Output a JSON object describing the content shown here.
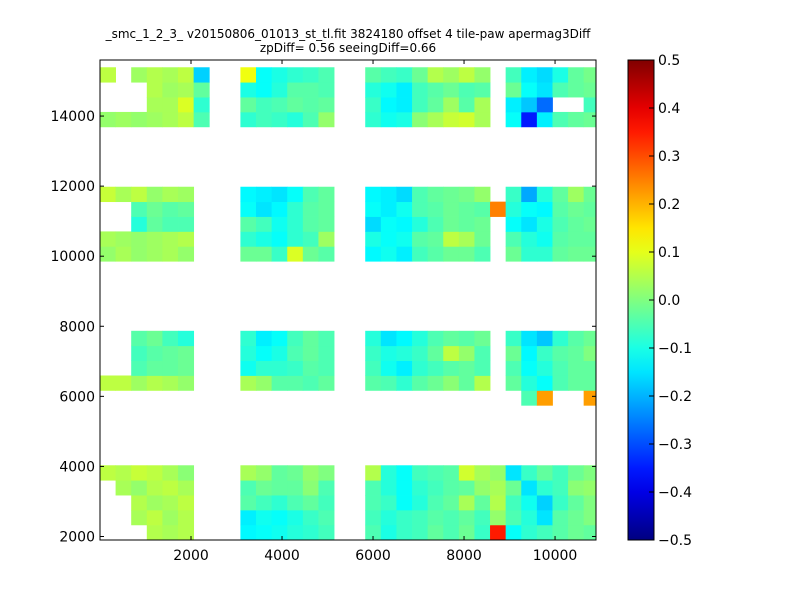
{
  "chart_data": {
    "type": "heatmap",
    "title": "_smc_1_2_3_ v20150806_01013_st_tl.fit 3824180 offset 4 tile-paw apermag3Diff",
    "subtitle": "zpDiff= 0.56 seeingDiff=0.66",
    "xlabel": "",
    "ylabel": "",
    "xlim": [
      0,
      10900
    ],
    "ylim": [
      1900,
      15600
    ],
    "x_ticks": [
      2000,
      4000,
      6000,
      8000,
      10000
    ],
    "y_ticks": [
      2000,
      4000,
      6000,
      8000,
      10000,
      12000,
      14000
    ],
    "grid": false,
    "colorbar": {
      "colormap": "jet",
      "vmin": -0.5,
      "vmax": 0.5,
      "ticks": [
        0.5,
        0.4,
        0.3,
        0.2,
        0.1,
        0.0,
        -0.1,
        -0.2,
        -0.3,
        -0.4,
        -0.5
      ],
      "tick_labels": [
        "0.5",
        "0.4",
        "0.3",
        "0.2",
        "0.1",
        "0.0",
        "−0.1",
        "−0.2",
        "−0.3",
        "−0.4",
        "−0.5"
      ]
    },
    "cell_width": 343,
    "cell_height": 425,
    "row_centers_y": [
      2120,
      2545,
      2970,
      3395,
      3820,
      5958,
      6383,
      6808,
      7233,
      7658,
      10070,
      10495,
      10920,
      11345,
      11770,
      13905,
      14330,
      14755,
      15180
    ],
    "col_centers_x": [
      171,
      514,
      857,
      1200,
      1543,
      1886,
      2229,
      2914,
      3257,
      3600,
      3943,
      4286,
      4629,
      4972,
      5657,
      6000,
      6343,
      6686,
      7029,
      7372,
      7715,
      8058,
      8400,
      8743,
      9086,
      9429,
      9772,
      10115,
      10458,
      10800
    ],
    "values_rows": [
      [
        null,
        null,
        null,
        0.05,
        0.04,
        0.05,
        null,
        null,
        -0.13,
        -0.12,
        -0.11,
        -0.09,
        -0.08,
        -0.06,
        null,
        -0.05,
        -0.1,
        -0.07,
        -0.06,
        -0.03,
        -0.05,
        -0.02,
        -0.07,
        0.35,
        -0.12,
        -0.08,
        -0.06,
        -0.04,
        -0.02,
        -0.03
      ],
      [
        null,
        null,
        0.04,
        0.06,
        0.03,
        0.05,
        null,
        null,
        -0.14,
        -0.11,
        -0.12,
        -0.1,
        -0.07,
        -0.05,
        null,
        -0.06,
        -0.09,
        -0.07,
        -0.06,
        -0.04,
        -0.05,
        -0.03,
        -0.06,
        0.02,
        -0.05,
        -0.09,
        -0.15,
        -0.04,
        -0.02,
        0.0
      ],
      [
        null,
        null,
        0.05,
        0.03,
        0.04,
        0.06,
        null,
        null,
        -0.04,
        -0.06,
        -0.08,
        -0.05,
        -0.03,
        -0.06,
        null,
        -0.05,
        -0.07,
        -0.12,
        -0.09,
        -0.05,
        -0.03,
        0.04,
        -0.03,
        0.05,
        -0.06,
        -0.11,
        -0.17,
        -0.07,
        -0.03,
        0.0
      ],
      [
        null,
        0.04,
        0.02,
        0.05,
        0.06,
        0.04,
        null,
        null,
        -0.05,
        -0.02,
        -0.03,
        -0.03,
        0.01,
        -0.05,
        null,
        -0.05,
        -0.09,
        -0.12,
        -0.08,
        -0.06,
        -0.04,
        -0.03,
        0.02,
        0.04,
        -0.02,
        -0.15,
        -0.08,
        -0.06,
        0.01,
        0.02
      ],
      [
        0.06,
        0.05,
        0.07,
        0.06,
        0.04,
        0.01,
        null,
        null,
        0.04,
        0.02,
        -0.03,
        -0.02,
        0.02,
        0.0,
        null,
        0.05,
        -0.09,
        -0.12,
        -0.06,
        -0.05,
        -0.04,
        0.08,
        0.04,
        0.02,
        -0.15,
        -0.07,
        -0.03,
        -0.06,
        -0.02,
        0.0
      ],
      [
        null,
        null,
        null,
        null,
        null,
        null,
        null,
        null,
        null,
        null,
        null,
        null,
        null,
        null,
        null,
        null,
        null,
        null,
        null,
        null,
        null,
        null,
        null,
        null,
        null,
        -0.05,
        0.22,
        null,
        null,
        0.22
      ],
      [
        0.06,
        0.06,
        0.03,
        0.05,
        0.04,
        0.02,
        null,
        null,
        0.04,
        0.02,
        -0.04,
        -0.04,
        -0.05,
        -0.03,
        null,
        -0.04,
        -0.05,
        -0.08,
        -0.04,
        -0.02,
        0.01,
        -0.03,
        0.05,
        null,
        -0.03,
        -0.09,
        -0.12,
        -0.05,
        -0.03,
        -0.03
      ],
      [
        null,
        null,
        -0.05,
        -0.03,
        -0.03,
        -0.02,
        null,
        null,
        -0.11,
        -0.08,
        -0.08,
        -0.07,
        -0.04,
        -0.05,
        null,
        -0.06,
        -0.11,
        -0.14,
        -0.08,
        -0.06,
        -0.04,
        -0.03,
        -0.05,
        null,
        -0.05,
        -0.12,
        -0.09,
        -0.05,
        -0.03,
        -0.03
      ],
      [
        null,
        null,
        -0.06,
        -0.04,
        -0.03,
        -0.02,
        null,
        null,
        -0.09,
        -0.12,
        -0.1,
        -0.05,
        -0.03,
        -0.05,
        null,
        -0.07,
        -0.1,
        -0.09,
        -0.07,
        -0.03,
        0.06,
        0.02,
        -0.05,
        null,
        -0.02,
        -0.13,
        -0.07,
        -0.04,
        -0.03,
        0.0
      ],
      [
        null,
        null,
        -0.04,
        -0.02,
        -0.06,
        -0.09,
        null,
        null,
        -0.08,
        -0.14,
        -0.12,
        -0.06,
        -0.03,
        -0.05,
        null,
        -0.09,
        -0.15,
        -0.13,
        -0.09,
        -0.05,
        -0.03,
        -0.04,
        -0.02,
        null,
        -0.07,
        -0.15,
        -0.18,
        -0.08,
        -0.04,
        -0.02
      ],
      [
        0.02,
        0.04,
        0.02,
        0.03,
        0.04,
        0.02,
        null,
        null,
        -0.02,
        -0.02,
        -0.07,
        0.09,
        -0.02,
        -0.04,
        null,
        -0.13,
        -0.11,
        -0.14,
        -0.06,
        -0.04,
        -0.02,
        -0.02,
        -0.05,
        null,
        -0.02,
        -0.08,
        -0.08,
        -0.03,
        -0.02,
        -0.02
      ],
      [
        0.04,
        0.03,
        0.02,
        0.03,
        0.04,
        0.05,
        null,
        null,
        -0.08,
        -0.1,
        -0.12,
        -0.08,
        -0.06,
        0.03,
        null,
        -0.1,
        -0.12,
        -0.11,
        -0.04,
        -0.03,
        0.06,
        0.04,
        -0.02,
        null,
        -0.05,
        -0.09,
        -0.11,
        -0.04,
        -0.03,
        -0.03
      ],
      [
        null,
        null,
        -0.09,
        -0.03,
        -0.05,
        -0.05,
        null,
        null,
        -0.04,
        -0.06,
        -0.11,
        -0.08,
        -0.04,
        -0.03,
        null,
        -0.16,
        -0.12,
        -0.13,
        -0.09,
        -0.05,
        -0.02,
        -0.03,
        -0.02,
        null,
        -0.12,
        -0.15,
        -0.1,
        -0.05,
        -0.03,
        -0.02
      ],
      [
        null,
        null,
        -0.05,
        -0.02,
        -0.04,
        -0.03,
        null,
        null,
        -0.12,
        -0.15,
        -0.13,
        -0.08,
        -0.04,
        -0.03,
        null,
        -0.12,
        -0.14,
        -0.11,
        -0.05,
        -0.04,
        -0.02,
        -0.03,
        -0.04,
        0.25,
        -0.09,
        -0.12,
        -0.13,
        -0.04,
        -0.02,
        -0.03
      ],
      [
        0.07,
        0.04,
        0.06,
        0.02,
        0.04,
        0.03,
        null,
        null,
        -0.13,
        -0.14,
        -0.15,
        -0.12,
        -0.05,
        -0.03,
        null,
        -0.13,
        -0.14,
        -0.16,
        -0.05,
        -0.03,
        -0.02,
        -0.01,
        0.02,
        null,
        -0.07,
        -0.21,
        -0.09,
        -0.03,
        0.03,
        -0.02
      ],
      [
        0.02,
        0.03,
        0.02,
        0.03,
        0.04,
        0.06,
        -0.05,
        null,
        -0.08,
        -0.06,
        -0.07,
        -0.09,
        -0.05,
        0.02,
        null,
        -0.08,
        -0.11,
        -0.1,
        0.01,
        0.04,
        0.07,
        0.08,
        0.04,
        null,
        -0.12,
        -0.35,
        -0.14,
        -0.05,
        -0.03,
        -0.02
      ],
      [
        null,
        null,
        null,
        0.04,
        0.04,
        0.09,
        -0.08,
        null,
        -0.03,
        -0.06,
        -0.05,
        -0.03,
        -0.04,
        -0.03,
        null,
        -0.07,
        -0.13,
        -0.14,
        -0.06,
        -0.03,
        0.03,
        -0.04,
        0.04,
        null,
        -0.14,
        -0.18,
        -0.27,
        null,
        null,
        -0.06
      ],
      [
        null,
        null,
        null,
        0.05,
        0.03,
        0.04,
        -0.03,
        null,
        -0.1,
        -0.12,
        -0.09,
        -0.04,
        -0.04,
        -0.05,
        null,
        -0.09,
        -0.11,
        -0.14,
        -0.06,
        -0.04,
        -0.02,
        -0.05,
        -0.04,
        null,
        -0.02,
        -0.12,
        -0.15,
        -0.05,
        -0.03,
        -0.02
      ],
      [
        0.06,
        null,
        0.03,
        0.05,
        0.04,
        0.06,
        -0.17,
        null,
        0.11,
        -0.12,
        -0.1,
        -0.08,
        -0.07,
        -0.05,
        null,
        -0.04,
        -0.06,
        -0.07,
        -0.02,
        0.05,
        0.03,
        0.06,
        0.02,
        null,
        -0.06,
        -0.14,
        -0.16,
        -0.1,
        -0.03,
        -0.01
      ]
    ]
  }
}
